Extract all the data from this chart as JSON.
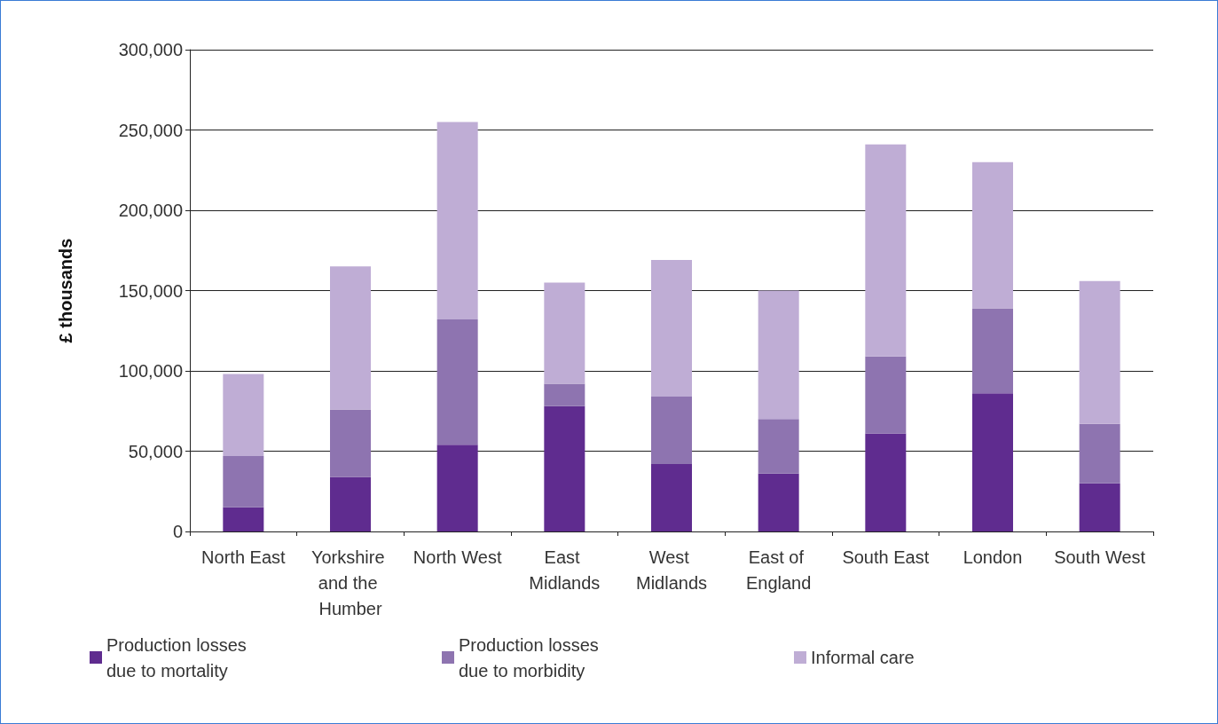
{
  "chart_data": {
    "type": "bar",
    "ylabel": "£ thousands",
    "stacked": true,
    "grid": "y",
    "legend": "bottom left",
    "categories": [
      "North East",
      "Yorkshire and the Humber",
      "North West",
      "East Midlands",
      "West Midlands",
      "East of England",
      "South East",
      "London",
      "South West"
    ],
    "series": [
      {
        "name": "Production losses due to mortality",
        "color": "#5f2c8f",
        "values": [
          15000,
          34000,
          54000,
          78000,
          42000,
          36000,
          61000,
          86000,
          30000
        ]
      },
      {
        "name": "Production losses due to morbidity",
        "color": "#8e74b0",
        "values": [
          32000,
          42000,
          78000,
          14000,
          42000,
          34000,
          48000,
          53000,
          37000
        ]
      },
      {
        "name": "Informal care",
        "color": "#bfadd5",
        "values": [
          51000,
          89000,
          123000,
          63000,
          85000,
          80000,
          132000,
          91000,
          89000
        ]
      }
    ],
    "ylim": [
      0,
      300000
    ],
    "yticks": [
      0,
      {
        "value": 50000,
        "label": "50,000"
      },
      {
        "value": 100000,
        "label": "100,000"
      },
      {
        "value": 150000,
        "label": "150,000"
      },
      {
        "value": 200000,
        "label": "200,000"
      },
      {
        "value": 250000,
        "label": "250,000"
      },
      {
        "value": 300000,
        "label": "300,000"
      }
    ]
  }
}
